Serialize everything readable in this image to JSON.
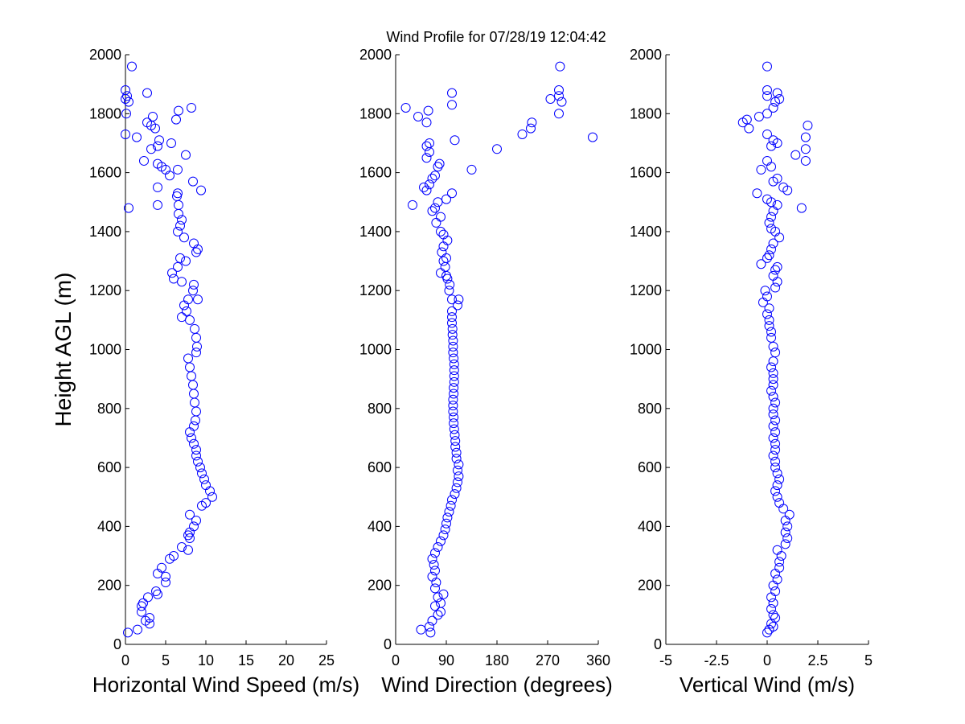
{
  "figure": {
    "title": "Wind Profile for  07/28/19 12:04:42"
  },
  "chart_data": [
    {
      "type": "scatter",
      "xlabel": "Horizontal Wind Speed (m/s)",
      "ylabel": "Height AGL (m)",
      "xlim": [
        0,
        25
      ],
      "ylim": [
        0,
        2000
      ],
      "xticks": [
        0,
        5,
        10,
        15,
        20,
        25
      ],
      "xtick_labels": [
        "0",
        "5",
        "10",
        "15",
        "20",
        "25"
      ],
      "yticks": [
        0,
        200,
        400,
        600,
        800,
        1000,
        1200,
        1400,
        1600,
        1800,
        2000
      ],
      "ytick_labels": [
        "0",
        "200",
        "400",
        "600",
        "800",
        "1000",
        "1200",
        "1400",
        "1600",
        "1800",
        "2000"
      ],
      "marker_color": "#0000ff",
      "points": [
        [
          0.3,
          40
        ],
        [
          1.5,
          50
        ],
        [
          3.0,
          70
        ],
        [
          2.5,
          80
        ],
        [
          3.0,
          90
        ],
        [
          2.0,
          110
        ],
        [
          2.0,
          130
        ],
        [
          2.2,
          140
        ],
        [
          2.8,
          160
        ],
        [
          4.0,
          170
        ],
        [
          3.8,
          180
        ],
        [
          5.0,
          210
        ],
        [
          5.0,
          230
        ],
        [
          4.0,
          240
        ],
        [
          4.5,
          260
        ],
        [
          5.5,
          290
        ],
        [
          6.0,
          300
        ],
        [
          7.8,
          320
        ],
        [
          7.0,
          330
        ],
        [
          8.0,
          360
        ],
        [
          7.8,
          370
        ],
        [
          8.0,
          380
        ],
        [
          8.5,
          400
        ],
        [
          8.8,
          420
        ],
        [
          8.0,
          440
        ],
        [
          9.5,
          470
        ],
        [
          10.0,
          480
        ],
        [
          10.8,
          500
        ],
        [
          10.5,
          520
        ],
        [
          10.0,
          540
        ],
        [
          9.8,
          560
        ],
        [
          9.5,
          580
        ],
        [
          9.3,
          600
        ],
        [
          9.0,
          620
        ],
        [
          8.8,
          640
        ],
        [
          8.8,
          660
        ],
        [
          8.5,
          680
        ],
        [
          8.2,
          700
        ],
        [
          8.0,
          720
        ],
        [
          8.5,
          740
        ],
        [
          8.7,
          760
        ],
        [
          8.8,
          790
        ],
        [
          8.6,
          820
        ],
        [
          8.5,
          850
        ],
        [
          8.4,
          880
        ],
        [
          8.2,
          910
        ],
        [
          8.0,
          940
        ],
        [
          7.8,
          970
        ],
        [
          8.8,
          990
        ],
        [
          8.9,
          1010
        ],
        [
          8.8,
          1040
        ],
        [
          8.6,
          1070
        ],
        [
          8.0,
          1100
        ],
        [
          7.0,
          1110
        ],
        [
          7.6,
          1130
        ],
        [
          7.3,
          1150
        ],
        [
          7.8,
          1170
        ],
        [
          9.0,
          1170
        ],
        [
          8.4,
          1200
        ],
        [
          8.5,
          1220
        ],
        [
          7.0,
          1230
        ],
        [
          6.0,
          1240
        ],
        [
          5.8,
          1260
        ],
        [
          6.5,
          1280
        ],
        [
          7.5,
          1300
        ],
        [
          6.8,
          1310
        ],
        [
          8.8,
          1330
        ],
        [
          9.0,
          1340
        ],
        [
          8.5,
          1360
        ],
        [
          7.3,
          1380
        ],
        [
          6.5,
          1400
        ],
        [
          6.8,
          1420
        ],
        [
          7.0,
          1440
        ],
        [
          6.6,
          1460
        ],
        [
          0.4,
          1480
        ],
        [
          6.6,
          1490
        ],
        [
          4.0,
          1490
        ],
        [
          6.4,
          1520
        ],
        [
          6.5,
          1530
        ],
        [
          9.4,
          1540
        ],
        [
          4.0,
          1550
        ],
        [
          8.4,
          1570
        ],
        [
          5.5,
          1590
        ],
        [
          5.0,
          1610
        ],
        [
          6.5,
          1610
        ],
        [
          4.5,
          1620
        ],
        [
          4.0,
          1630
        ],
        [
          2.3,
          1640
        ],
        [
          7.5,
          1660
        ],
        [
          3.2,
          1680
        ],
        [
          4.0,
          1690
        ],
        [
          5.7,
          1700
        ],
        [
          4.2,
          1710
        ],
        [
          1.4,
          1720
        ],
        [
          0.0,
          1730
        ],
        [
          3.7,
          1750
        ],
        [
          3.2,
          1760
        ],
        [
          2.7,
          1770
        ],
        [
          6.3,
          1780
        ],
        [
          3.4,
          1790
        ],
        [
          0.1,
          1800
        ],
        [
          6.6,
          1810
        ],
        [
          8.2,
          1820
        ],
        [
          0.4,
          1840
        ],
        [
          0.0,
          1850
        ],
        [
          0.2,
          1860
        ],
        [
          2.7,
          1870
        ],
        [
          0.0,
          1880
        ],
        [
          0.8,
          1960
        ]
      ]
    },
    {
      "type": "scatter",
      "xlabel": "Wind Direction (degrees)",
      "ylabel": "",
      "xlim": [
        0,
        360
      ],
      "ylim": [
        0,
        2000
      ],
      "xticks": [
        0,
        90,
        180,
        270,
        360
      ],
      "xtick_labels": [
        "0",
        "90",
        "180",
        "270",
        "360"
      ],
      "yticks": [
        0,
        200,
        400,
        600,
        800,
        1000,
        1200,
        1400,
        1600,
        1800,
        2000
      ],
      "ytick_labels": [
        "0",
        "200",
        "400",
        "600",
        "800",
        "1000",
        "1200",
        "1400",
        "1600",
        "1800",
        "2000"
      ],
      "marker_color": "#0000ff",
      "points": [
        [
          62,
          40
        ],
        [
          45,
          50
        ],
        [
          60,
          60
        ],
        [
          65,
          80
        ],
        [
          75,
          100
        ],
        [
          80,
          110
        ],
        [
          70,
          130
        ],
        [
          80,
          140
        ],
        [
          75,
          160
        ],
        [
          85,
          170
        ],
        [
          70,
          190
        ],
        [
          72,
          210
        ],
        [
          65,
          230
        ],
        [
          70,
          250
        ],
        [
          68,
          270
        ],
        [
          65,
          290
        ],
        [
          70,
          310
        ],
        [
          75,
          330
        ],
        [
          80,
          350
        ],
        [
          85,
          370
        ],
        [
          88,
          390
        ],
        [
          90,
          410
        ],
        [
          92,
          430
        ],
        [
          95,
          450
        ],
        [
          98,
          470
        ],
        [
          100,
          490
        ],
        [
          105,
          510
        ],
        [
          108,
          530
        ],
        [
          110,
          550
        ],
        [
          112,
          570
        ],
        [
          110,
          590
        ],
        [
          112,
          610
        ],
        [
          108,
          630
        ],
        [
          108,
          650
        ],
        [
          106,
          670
        ],
        [
          106,
          690
        ],
        [
          105,
          710
        ],
        [
          104,
          730
        ],
        [
          103,
          750
        ],
        [
          103,
          770
        ],
        [
          102,
          790
        ],
        [
          102,
          810
        ],
        [
          102,
          830
        ],
        [
          103,
          850
        ],
        [
          103,
          870
        ],
        [
          104,
          890
        ],
        [
          104,
          910
        ],
        [
          104,
          930
        ],
        [
          104,
          950
        ],
        [
          103,
          970
        ],
        [
          102,
          990
        ],
        [
          102,
          1010
        ],
        [
          102,
          1030
        ],
        [
          101,
          1050
        ],
        [
          101,
          1070
        ],
        [
          100,
          1090
        ],
        [
          100,
          1110
        ],
        [
          100,
          1130
        ],
        [
          110,
          1150
        ],
        [
          112,
          1170
        ],
        [
          100,
          1170
        ],
        [
          95,
          1200
        ],
        [
          96,
          1220
        ],
        [
          92,
          1240
        ],
        [
          90,
          1250
        ],
        [
          80,
          1260
        ],
        [
          88,
          1280
        ],
        [
          85,
          1300
        ],
        [
          90,
          1310
        ],
        [
          82,
          1330
        ],
        [
          85,
          1350
        ],
        [
          92,
          1370
        ],
        [
          85,
          1390
        ],
        [
          80,
          1400
        ],
        [
          72,
          1430
        ],
        [
          80,
          1450
        ],
        [
          65,
          1470
        ],
        [
          70,
          1480
        ],
        [
          30,
          1490
        ],
        [
          75,
          1500
        ],
        [
          90,
          1510
        ],
        [
          100,
          1530
        ],
        [
          55,
          1540
        ],
        [
          50,
          1550
        ],
        [
          60,
          1560
        ],
        [
          65,
          1580
        ],
        [
          70,
          1590
        ],
        [
          75,
          1620
        ],
        [
          78,
          1630
        ],
        [
          135,
          1610
        ],
        [
          55,
          1650
        ],
        [
          60,
          1670
        ],
        [
          55,
          1690
        ],
        [
          60,
          1700
        ],
        [
          105,
          1710
        ],
        [
          350,
          1720
        ],
        [
          225,
          1730
        ],
        [
          240,
          1750
        ],
        [
          242,
          1770
        ],
        [
          180,
          1680
        ],
        [
          55,
          1770
        ],
        [
          40,
          1790
        ],
        [
          290,
          1800
        ],
        [
          58,
          1810
        ],
        [
          18,
          1820
        ],
        [
          100,
          1830
        ],
        [
          275,
          1850
        ],
        [
          295,
          1840
        ],
        [
          290,
          1860
        ],
        [
          100,
          1870
        ],
        [
          290,
          1880
        ],
        [
          292,
          1960
        ]
      ]
    },
    {
      "type": "scatter",
      "xlabel": "Vertical Wind (m/s)",
      "ylabel": "",
      "xlim": [
        -5,
        5
      ],
      "ylim": [
        0,
        2000
      ],
      "xticks": [
        -5,
        -2.5,
        0,
        2.5,
        5
      ],
      "xtick_labels": [
        "-5",
        "-2.5",
        "0",
        "2.5",
        "5"
      ],
      "yticks": [
        0,
        200,
        400,
        600,
        800,
        1000,
        1200,
        1400,
        1600,
        1800,
        2000
      ],
      "ytick_labels": [
        "0",
        "200",
        "400",
        "600",
        "800",
        "1000",
        "1200",
        "1400",
        "1600",
        "1800",
        "2000"
      ],
      "marker_color": "#0000ff",
      "points": [
        [
          0.0,
          40
        ],
        [
          0.1,
          50
        ],
        [
          0.3,
          60
        ],
        [
          0.2,
          70
        ],
        [
          0.4,
          90
        ],
        [
          0.3,
          100
        ],
        [
          0.2,
          120
        ],
        [
          0.3,
          140
        ],
        [
          0.2,
          160
        ],
        [
          0.4,
          180
        ],
        [
          0.3,
          200
        ],
        [
          0.5,
          220
        ],
        [
          0.4,
          240
        ],
        [
          0.6,
          260
        ],
        [
          0.6,
          280
        ],
        [
          0.7,
          300
        ],
        [
          0.5,
          320
        ],
        [
          0.9,
          340
        ],
        [
          1.0,
          360
        ],
        [
          0.9,
          380
        ],
        [
          1.0,
          400
        ],
        [
          0.9,
          420
        ],
        [
          1.1,
          440
        ],
        [
          0.8,
          460
        ],
        [
          0.6,
          480
        ],
        [
          0.5,
          500
        ],
        [
          0.4,
          520
        ],
        [
          0.5,
          540
        ],
        [
          0.6,
          560
        ],
        [
          0.5,
          580
        ],
        [
          0.4,
          600
        ],
        [
          0.4,
          620
        ],
        [
          0.3,
          640
        ],
        [
          0.4,
          660
        ],
        [
          0.4,
          680
        ],
        [
          0.3,
          700
        ],
        [
          0.4,
          720
        ],
        [
          0.3,
          740
        ],
        [
          0.4,
          760
        ],
        [
          0.3,
          780
        ],
        [
          0.3,
          800
        ],
        [
          0.4,
          820
        ],
        [
          0.3,
          840
        ],
        [
          0.2,
          860
        ],
        [
          0.3,
          880
        ],
        [
          0.3,
          900
        ],
        [
          0.3,
          920
        ],
        [
          0.2,
          940
        ],
        [
          0.3,
          960
        ],
        [
          0.4,
          990
        ],
        [
          0.3,
          1010
        ],
        [
          0.2,
          1040
        ],
        [
          0.2,
          1060
        ],
        [
          0.1,
          1080
        ],
        [
          0.1,
          1100
        ],
        [
          0.0,
          1120
        ],
        [
          0.1,
          1140
        ],
        [
          -0.2,
          1160
        ],
        [
          0.0,
          1180
        ],
        [
          -0.1,
          1200
        ],
        [
          0.4,
          1210
        ],
        [
          0.5,
          1230
        ],
        [
          0.3,
          1250
        ],
        [
          0.4,
          1270
        ],
        [
          0.5,
          1280
        ],
        [
          -0.3,
          1290
        ],
        [
          0.0,
          1310
        ],
        [
          0.1,
          1320
        ],
        [
          0.2,
          1340
        ],
        [
          0.3,
          1360
        ],
        [
          0.6,
          1380
        ],
        [
          0.4,
          1400
        ],
        [
          0.2,
          1410
        ],
        [
          0.1,
          1430
        ],
        [
          0.2,
          1450
        ],
        [
          0.3,
          1470
        ],
        [
          1.7,
          1480
        ],
        [
          0.5,
          1490
        ],
        [
          0.2,
          1500
        ],
        [
          0.0,
          1510
        ],
        [
          -0.5,
          1530
        ],
        [
          1.0,
          1540
        ],
        [
          0.8,
          1550
        ],
        [
          0.3,
          1570
        ],
        [
          0.5,
          1580
        ],
        [
          -0.3,
          1610
        ],
        [
          0.2,
          1620
        ],
        [
          0.0,
          1640
        ],
        [
          1.9,
          1640
        ],
        [
          1.4,
          1660
        ],
        [
          1.9,
          1680
        ],
        [
          0.2,
          1690
        ],
        [
          0.5,
          1700
        ],
        [
          0.3,
          1710
        ],
        [
          1.9,
          1720
        ],
        [
          0.0,
          1730
        ],
        [
          -0.9,
          1750
        ],
        [
          2.0,
          1760
        ],
        [
          -1.2,
          1770
        ],
        [
          -1.0,
          1780
        ],
        [
          -0.4,
          1790
        ],
        [
          0.0,
          1800
        ],
        [
          0.3,
          1820
        ],
        [
          0.4,
          1840
        ],
        [
          0.6,
          1850
        ],
        [
          0.0,
          1860
        ],
        [
          0.5,
          1870
        ],
        [
          0.0,
          1880
        ],
        [
          0.0,
          1960
        ]
      ]
    }
  ]
}
